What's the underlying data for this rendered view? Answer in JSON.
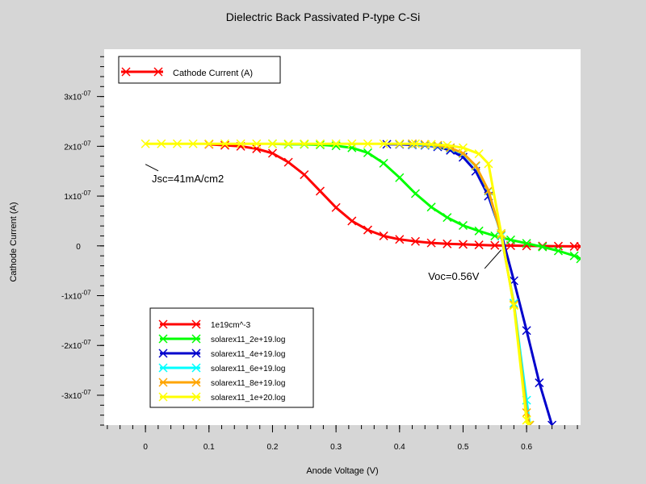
{
  "chart_data": {
    "type": "line",
    "title": "Dielectric Back Passivated P-type C-Si",
    "xlabel": "Anode Voltage (V)",
    "ylabel": "Cathode Current (A)",
    "xlim": [
      -0.065,
      0.685
    ],
    "ylim": [
      -3.6e-07,
      3.95e-07
    ],
    "x_ticks": [
      0,
      0.1,
      0.2,
      0.3,
      0.4,
      0.5,
      0.6
    ],
    "x_tick_labels": [
      "0",
      "0.1",
      "0.2",
      "0.3",
      "0.4",
      "0.5",
      "0.6"
    ],
    "y_ticks": [
      3e-07,
      2e-07,
      1e-07,
      0,
      -1e-07,
      -2e-07,
      -3e-07
    ],
    "y_tick_labels": [
      {
        "base": "3x10",
        "exp": "-07"
      },
      {
        "base": "2x10",
        "exp": "-07"
      },
      {
        "base": "1x10",
        "exp": "-07"
      },
      {
        "base": "0",
        "exp": ""
      },
      {
        "base": "-1x10",
        "exp": "-07"
      },
      {
        "base": "-2x10",
        "exp": "-07"
      },
      {
        "base": "-3x10",
        "exp": "-07"
      }
    ],
    "top_legend": {
      "label": "Cathode Current (A)",
      "color": "#ff0000"
    },
    "annotations": [
      {
        "text": "Jsc=41mA/cm2",
        "x": 0.01,
        "y": 1.28e-07,
        "point_x": 0.0,
        "point_y": 1.8e-07
      },
      {
        "text": "Voc=0.56V",
        "x": 0.445,
        "y": -6.8e-08,
        "point_x": 0.56,
        "point_y": -8e-09
      }
    ],
    "series": [
      {
        "name": "1e19cm^-3",
        "color": "#ff0000",
        "x": [
          0.1,
          0.125,
          0.15,
          0.175,
          0.2,
          0.225,
          0.25,
          0.275,
          0.3,
          0.325,
          0.35,
          0.375,
          0.4,
          0.425,
          0.45,
          0.475,
          0.5,
          0.525,
          0.55,
          0.575,
          0.6,
          0.625,
          0.65,
          0.675,
          0.685
        ],
        "y": [
          2.04e-07,
          2.02e-07,
          2e-07,
          1.95e-07,
          1.86e-07,
          1.68e-07,
          1.43e-07,
          1.1e-07,
          7.7e-08,
          5e-08,
          3.2e-08,
          2e-08,
          1.3e-08,
          9e-09,
          6e-09,
          4e-09,
          3e-09,
          2e-09,
          1e-09,
          5e-10,
          0.0,
          -3e-10,
          -6e-10,
          -1e-09,
          -1.2e-09
        ]
      },
      {
        "name": "solarex11_2e+19.log",
        "color": "#00ff00",
        "x": [
          0.2,
          0.225,
          0.25,
          0.275,
          0.3,
          0.325,
          0.35,
          0.375,
          0.4,
          0.425,
          0.45,
          0.475,
          0.5,
          0.525,
          0.55,
          0.575,
          0.6,
          0.625,
          0.65,
          0.675,
          0.685
        ],
        "y": [
          2.05e-07,
          2.04e-07,
          2.04e-07,
          2.03e-07,
          2.01e-07,
          1.97e-07,
          1.87e-07,
          1.66e-07,
          1.37e-07,
          1.05e-07,
          7.8e-08,
          5.7e-08,
          4.1e-08,
          3e-08,
          2e-08,
          1.2e-08,
          5e-09,
          -2e-09,
          -1e-08,
          -2e-08,
          -2.6e-08
        ]
      },
      {
        "name": "solarex11_4e+19.log",
        "color": "#0000cc",
        "x": [
          0.38,
          0.4,
          0.42,
          0.44,
          0.46,
          0.48,
          0.5,
          0.52,
          0.54,
          0.56,
          0.58,
          0.6,
          0.62,
          0.64
        ],
        "y": [
          2.04e-07,
          2.04e-07,
          2.03e-07,
          2.02e-07,
          1.99e-07,
          1.92e-07,
          1.78e-07,
          1.5e-07,
          1e-07,
          2.5e-08,
          -7e-08,
          -1.7e-07,
          -2.75e-07,
          -3.6e-07
        ]
      },
      {
        "name": "solarex11_6e+19.log",
        "color": "#00ffff",
        "x": [
          0.42,
          0.44,
          0.46,
          0.48,
          0.5,
          0.52,
          0.54,
          0.56,
          0.58,
          0.6,
          0.605
        ],
        "y": [
          2.04e-07,
          2.03e-07,
          2.01e-07,
          1.96e-07,
          1.85e-07,
          1.6e-07,
          1.1e-07,
          2e-08,
          -1.15e-07,
          -3.1e-07,
          -3.6e-07
        ]
      },
      {
        "name": "solarex11_8e+19.log",
        "color": "#ffa500",
        "x": [
          0.42,
          0.44,
          0.46,
          0.48,
          0.5,
          0.52,
          0.54,
          0.56,
          0.58,
          0.6,
          0.605
        ],
        "y": [
          2.05e-07,
          2.04e-07,
          2.02e-07,
          1.97e-07,
          1.86e-07,
          1.61e-07,
          1.11e-07,
          2.2e-08,
          -1.18e-07,
          -3.35e-07,
          -3.6e-07
        ]
      },
      {
        "name": "solarex11_1e+20.log",
        "color": "#ffff00",
        "x": [
          0.0,
          0.025,
          0.05,
          0.075,
          0.1,
          0.125,
          0.15,
          0.175,
          0.2,
          0.225,
          0.25,
          0.275,
          0.3,
          0.325,
          0.35,
          0.375,
          0.4,
          0.425,
          0.45,
          0.475,
          0.5,
          0.525,
          0.54,
          0.56,
          0.58,
          0.6,
          0.603
        ],
        "y": [
          2.05e-07,
          2.05e-07,
          2.05e-07,
          2.05e-07,
          2.05e-07,
          2.05e-07,
          2.05e-07,
          2.05e-07,
          2.05e-07,
          2.05e-07,
          2.05e-07,
          2.05e-07,
          2.05e-07,
          2.05e-07,
          2.05e-07,
          2.05e-07,
          2.05e-07,
          2.05e-07,
          2.04e-07,
          2.02e-07,
          1.97e-07,
          1.85e-07,
          1.65e-07,
          2.5e-08,
          -1.2e-07,
          -3.5e-07,
          -3.6e-07
        ]
      }
    ]
  }
}
